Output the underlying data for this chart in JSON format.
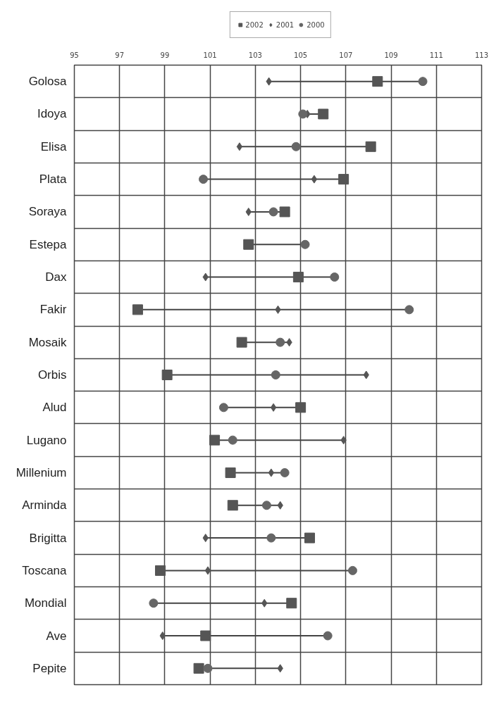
{
  "chart_data": {
    "type": "scatter",
    "categories": [
      "Golosa",
      "Idoya",
      "Elisa",
      "Plata",
      "Soraya",
      "Estepa",
      "Dax",
      "Fakir",
      "Mosaik",
      "Orbis",
      "Alud",
      "Lugano",
      "Millenium",
      "Arminda",
      "Brigitta",
      "Toscana",
      "Mondial",
      "Ave",
      "Pepite"
    ],
    "series": [
      {
        "name": "2002",
        "color": "#555555",
        "marker": "square",
        "values": [
          108.4,
          106.0,
          108.1,
          106.9,
          104.3,
          102.7,
          104.9,
          97.8,
          102.4,
          99.1,
          105.0,
          101.2,
          101.9,
          102.0,
          105.4,
          98.8,
          104.6,
          100.8,
          100.5
        ]
      },
      {
        "name": "2001",
        "color": "#555555",
        "marker": "diamond",
        "values": [
          103.6,
          105.3,
          102.3,
          105.6,
          102.7,
          null,
          100.8,
          104.0,
          104.5,
          107.9,
          103.8,
          106.9,
          103.7,
          104.1,
          100.8,
          100.9,
          103.4,
          98.9,
          104.1
        ]
      },
      {
        "name": "2000",
        "color": "#666666",
        "marker": "circle",
        "values": [
          110.4,
          105.1,
          104.8,
          100.7,
          103.8,
          105.2,
          106.5,
          109.8,
          104.1,
          103.9,
          101.6,
          102.0,
          104.3,
          103.5,
          103.7,
          107.3,
          98.5,
          106.2,
          100.9
        ]
      }
    ],
    "xlim": [
      95,
      113
    ],
    "xticks": [
      95,
      97,
      99,
      101,
      103,
      105,
      107,
      109,
      111,
      113
    ],
    "orientation": "horizontal",
    "grid": true,
    "legend": "top"
  }
}
